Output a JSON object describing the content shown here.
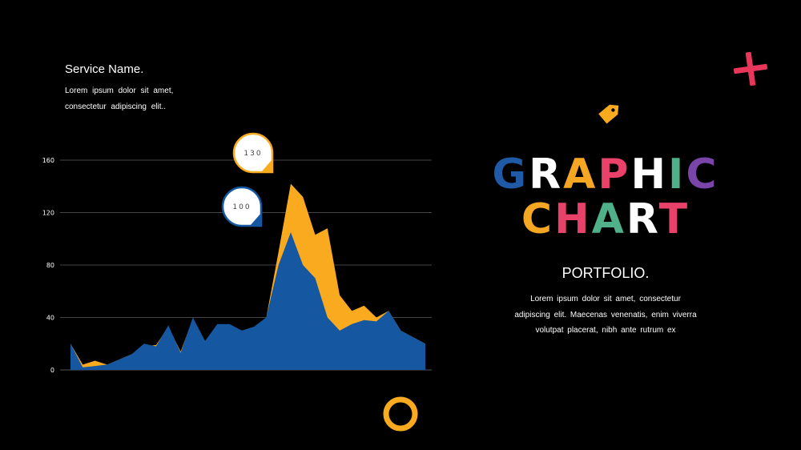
{
  "service": {
    "title": "Service Name.",
    "description": "Lorem ipsum dolor sit amet, consectetur adipiscing elit.."
  },
  "headline": {
    "row1": [
      {
        "char": "G",
        "color": "#1f5aa6"
      },
      {
        "char": "R",
        "color": "#ffffff"
      },
      {
        "char": "A",
        "color": "#f5a623"
      },
      {
        "char": "P",
        "color": "#e8416a"
      },
      {
        "char": "H",
        "color": "#ffffff"
      },
      {
        "char": "I",
        "color": "#4fb08a"
      },
      {
        "char": "C",
        "color": "#7a45a8"
      }
    ],
    "row2": [
      {
        "char": "C",
        "color": "#f5a623"
      },
      {
        "char": "H",
        "color": "#e8416a"
      },
      {
        "char": "A",
        "color": "#4fb08a"
      },
      {
        "char": "R",
        "color": "#ffffff"
      },
      {
        "char": "T",
        "color": "#e8416a"
      }
    ]
  },
  "portfolio": {
    "title": "PORTFOLIO.",
    "description": "Lorem ipsum dolor sit amet, consectetur adipiscing elit. Maecenas venenatis, enim viverra volutpat placerat, nibh ante rutrum ex"
  },
  "colors": {
    "blue": "#1557a0",
    "orange": "#f9aa1f",
    "red_cross": "#e8375a",
    "ring": "#f9aa1f",
    "tag": "#f9aa1f",
    "grid": "#444444"
  },
  "icons": [
    "plus-icon",
    "tag-icon",
    "ring-icon"
  ],
  "chart_data": {
    "type": "area",
    "title": "",
    "xlabel": "",
    "ylabel": "",
    "ylim": [
      0,
      160
    ],
    "yticks": [
      0,
      40,
      80,
      120,
      160
    ],
    "grid": true,
    "series": [
      {
        "values": [
          20,
          4,
          7,
          4,
          8,
          12,
          18,
          19,
          33,
          14,
          39,
          22,
          34,
          34,
          30,
          32,
          40,
          90,
          142,
          132,
          103,
          108,
          57,
          45,
          49,
          40,
          45,
          30,
          25,
          20
        ],
        "color": "#f9aa1f"
      },
      {
        "values": [
          20,
          2,
          3,
          4,
          8,
          12,
          20,
          18,
          34,
          13,
          40,
          22,
          35,
          35,
          30,
          33,
          40,
          80,
          105,
          80,
          70,
          40,
          30,
          35,
          38,
          37,
          45,
          30,
          25,
          20
        ],
        "color": "#1557a0"
      }
    ],
    "callouts": [
      {
        "label": "130",
        "color": "#f9aa1f"
      },
      {
        "label": "100",
        "color": "#1557a0"
      }
    ]
  }
}
